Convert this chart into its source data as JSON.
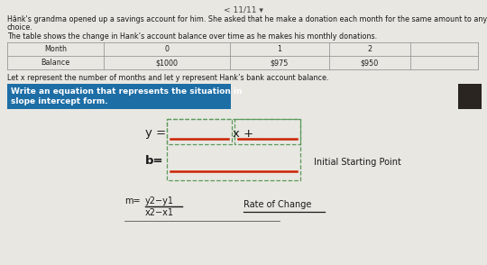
{
  "page_indicator": "< 11/11 ▾",
  "para1_line1": "Hânk's grandma opened up a savings account for him. She asked that he make a donation each month for the same amount to any charity of his",
  "para1_line2": "choice.",
  "para2": "The table shows the change in Hank’s account balance over time as he makes his monthly donations.",
  "table_col0": [
    "Month",
    "Balance"
  ],
  "table_col1": [
    "0",
    "$1000"
  ],
  "table_col2": [
    "1",
    "$975"
  ],
  "table_col3": [
    "2",
    "$950"
  ],
  "para3": "Let x represent the number of months and let y represent Hank’s bank account balance.",
  "blue_box_line1": "Write an equation that represents the situation in",
  "blue_box_line2": "slope intercept form.",
  "initial_label": "Initial Starting Point",
  "rate_label": "Rate of Change",
  "bg_color": "#cccbc5",
  "white_area_color": "#e8e7e2",
  "blue_box_color": "#1e6ea6",
  "blue_box_text_color": "#ffffff",
  "table_line_color": "#999999",
  "table_text_color": "#222222",
  "dashed_box_color": "#5a9a5a",
  "red_line_color": "#cc2200",
  "dark_box_color": "#2a2520",
  "fig_width": 5.4,
  "fig_height": 2.94,
  "dpi": 100
}
